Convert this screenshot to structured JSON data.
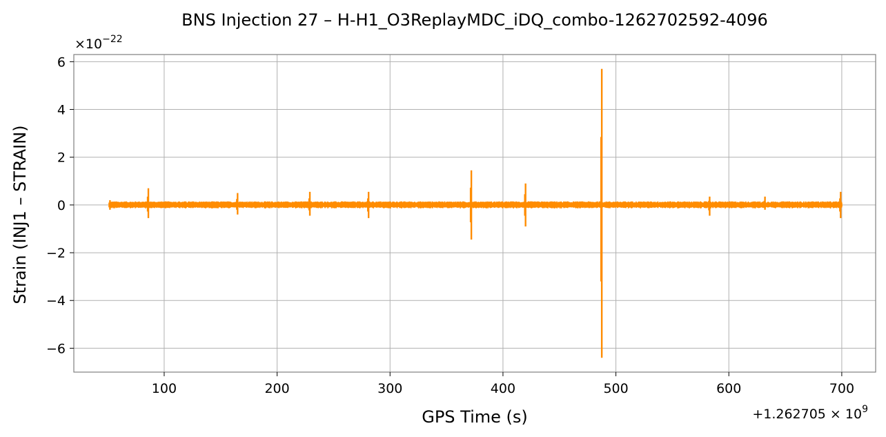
{
  "chart_data": {
    "type": "line",
    "title": "BNS Injection 27 – H-H1_O3ReplayMDC_iDQ_combo-1262702592-4096",
    "xlabel": "GPS Time (s)",
    "ylabel": "Strain (INJ1 – STRAIN)",
    "x_offset_label_prefix": "+1.262705 × 10",
    "x_offset_label_exponent": "9",
    "y_scale_prefix": "×10",
    "y_scale_exponent": "−22",
    "xlim": [
      20,
      730
    ],
    "ylim": [
      -7,
      6.3
    ],
    "x_ticks": [
      100,
      200,
      300,
      400,
      500,
      600,
      700
    ],
    "x_tick_labels": [
      "100",
      "200",
      "300",
      "400",
      "500",
      "600",
      "700"
    ],
    "y_ticks": [
      -6,
      -4,
      -2,
      0,
      2,
      4,
      6
    ],
    "y_tick_labels": [
      "−6",
      "−4",
      "−2",
      "0",
      "2",
      "4",
      "6"
    ],
    "grid": true,
    "series_color": "#ff8c00",
    "series": [
      {
        "x_range": [
          52,
          700
        ],
        "baseline_amplitude": 0.15,
        "spikes": [
          {
            "x": 52,
            "max": 0.2,
            "min": -0.2
          },
          {
            "x": 86,
            "max": 0.7,
            "min": -0.55
          },
          {
            "x": 165,
            "max": 0.5,
            "min": -0.4
          },
          {
            "x": 229,
            "max": 0.55,
            "min": -0.45
          },
          {
            "x": 281,
            "max": 0.55,
            "min": -0.55
          },
          {
            "x": 372,
            "max": 1.45,
            "min": -1.45
          },
          {
            "x": 420,
            "max": 0.9,
            "min": -0.9
          },
          {
            "x": 487.5,
            "max": 5.7,
            "min": -6.4
          },
          {
            "x": 583,
            "max": 0.35,
            "min": -0.45
          },
          {
            "x": 632,
            "max": 0.35,
            "min": -0.2
          },
          {
            "x": 699,
            "max": 0.55,
            "min": -0.55
          }
        ]
      }
    ]
  }
}
